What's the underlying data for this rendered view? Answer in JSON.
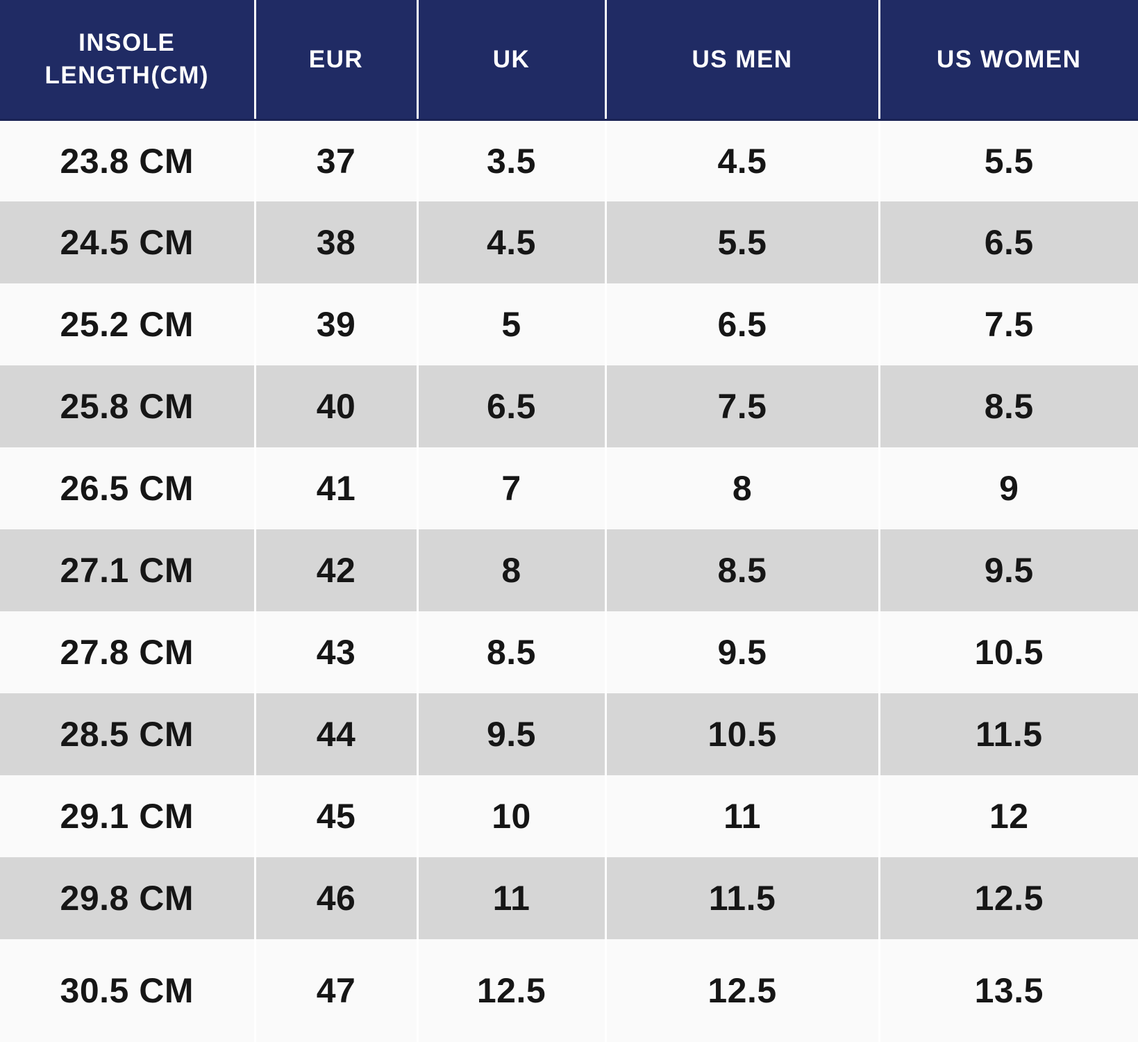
{
  "colors": {
    "header_bg": "#202b64",
    "header_text": "#ffffff",
    "row_light_bg": "#fafafa",
    "row_dark_bg": "#d6d6d6",
    "cell_text": "#161616",
    "divider": "#ffffff"
  },
  "table": {
    "columns": [
      "INSOLE LENGTH(CM)",
      "EUR",
      "UK",
      "US MEN",
      "US WOMEN"
    ],
    "rows": [
      [
        "23.8 CM",
        "37",
        "3.5",
        "4.5",
        "5.5"
      ],
      [
        "24.5 CM",
        "38",
        "4.5",
        "5.5",
        "6.5"
      ],
      [
        "25.2 CM",
        "39",
        "5",
        "6.5",
        "7.5"
      ],
      [
        "25.8 CM",
        "40",
        "6.5",
        "7.5",
        "8.5"
      ],
      [
        "26.5 CM",
        "41",
        "7",
        "8",
        "9"
      ],
      [
        "27.1 CM",
        "42",
        "8",
        "8.5",
        "9.5"
      ],
      [
        "27.8 CM",
        "43",
        "8.5",
        "9.5",
        "10.5"
      ],
      [
        "28.5 CM",
        "44",
        "9.5",
        "10.5",
        "11.5"
      ],
      [
        "29.1 CM",
        "45",
        "10",
        "11",
        "12"
      ],
      [
        "29.8 CM",
        "46",
        "11",
        "11.5",
        "12.5"
      ],
      [
        "30.5 CM",
        "47",
        "12.5",
        "12.5",
        "13.5"
      ]
    ]
  },
  "chart_data": {
    "type": "table",
    "columns": [
      "INSOLE LENGTH(CM)",
      "EUR",
      "UK",
      "US MEN",
      "US WOMEN"
    ],
    "rows": [
      [
        "23.8 CM",
        "37",
        "3.5",
        "4.5",
        "5.5"
      ],
      [
        "24.5 CM",
        "38",
        "4.5",
        "5.5",
        "6.5"
      ],
      [
        "25.2 CM",
        "39",
        "5",
        "6.5",
        "7.5"
      ],
      [
        "25.8 CM",
        "40",
        "6.5",
        "7.5",
        "8.5"
      ],
      [
        "26.5 CM",
        "41",
        "7",
        "8",
        "9"
      ],
      [
        "27.1 CM",
        "42",
        "8",
        "8.5",
        "9.5"
      ],
      [
        "27.8 CM",
        "43",
        "8.5",
        "9.5",
        "10.5"
      ],
      [
        "28.5 CM",
        "44",
        "9.5",
        "10.5",
        "11.5"
      ],
      [
        "29.1 CM",
        "45",
        "10",
        "11",
        "12"
      ],
      [
        "29.8 CM",
        "46",
        "11",
        "11.5",
        "12.5"
      ],
      [
        "30.5 CM",
        "47",
        "12.5",
        "12.5",
        "13.5"
      ]
    ]
  }
}
